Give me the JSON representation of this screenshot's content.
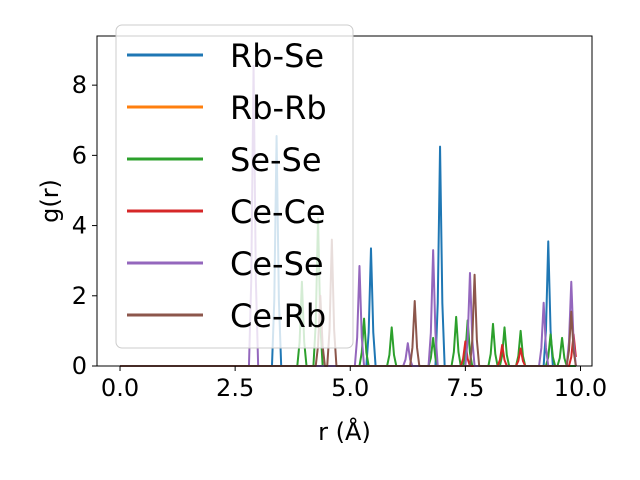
{
  "chart_data": {
    "type": "line",
    "xlabel": "r (Å)",
    "ylabel": "g(r)",
    "xlim": [
      -0.5,
      10.25
    ],
    "ylim": [
      0,
      9.4
    ],
    "xticks": [
      0.0,
      2.5,
      5.0,
      7.5,
      10.0
    ],
    "xtick_labels": [
      "0.0",
      "2.5",
      "5.0",
      "7.5",
      "10.0"
    ],
    "yticks": [
      0,
      2,
      4,
      6,
      8
    ],
    "ytick_labels": [
      "0",
      "2",
      "4",
      "6",
      "8"
    ],
    "grid": false,
    "legend_position": "upper-left",
    "series": [
      {
        "name": "Rb-Se",
        "color": "#1f77b4",
        "peaks": [
          [
            3.4,
            6.55
          ],
          [
            5.45,
            3.35
          ],
          [
            6.95,
            6.25
          ],
          [
            9.3,
            3.55
          ]
        ]
      },
      {
        "name": "Rb-Rb",
        "color": "#ff7f0e",
        "peaks": []
      },
      {
        "name": "Se-Se",
        "color": "#2ca02c",
        "peaks": [
          [
            3.95,
            2.4
          ],
          [
            4.3,
            4.2
          ],
          [
            5.3,
            1.35
          ],
          [
            5.9,
            1.1
          ],
          [
            6.8,
            0.8
          ],
          [
            7.3,
            1.4
          ],
          [
            7.55,
            1.3
          ],
          [
            8.1,
            1.2
          ],
          [
            8.35,
            1.1
          ],
          [
            8.7,
            1.0
          ],
          [
            9.35,
            0.9
          ],
          [
            9.6,
            0.8
          ]
        ]
      },
      {
        "name": "Ce-Ce",
        "color": "#d62728",
        "peaks": [
          [
            7.5,
            0.7
          ],
          [
            8.3,
            0.6
          ],
          [
            8.7,
            0.5
          ],
          [
            9.85,
            0.9
          ]
        ]
      },
      {
        "name": "Ce-Se",
        "color": "#9467bd",
        "peaks": [
          [
            2.9,
            8.55
          ],
          [
            5.2,
            2.85
          ],
          [
            6.25,
            0.65
          ],
          [
            6.8,
            3.3
          ],
          [
            7.6,
            2.65
          ],
          [
            9.2,
            1.8
          ],
          [
            9.8,
            2.4
          ]
        ]
      },
      {
        "name": "Ce-Rb",
        "color": "#8c564b",
        "peaks": [
          [
            4.35,
            2.0
          ],
          [
            4.6,
            3.6
          ],
          [
            6.4,
            1.85
          ],
          [
            7.7,
            2.6
          ],
          [
            9.8,
            1.55
          ]
        ]
      }
    ]
  }
}
